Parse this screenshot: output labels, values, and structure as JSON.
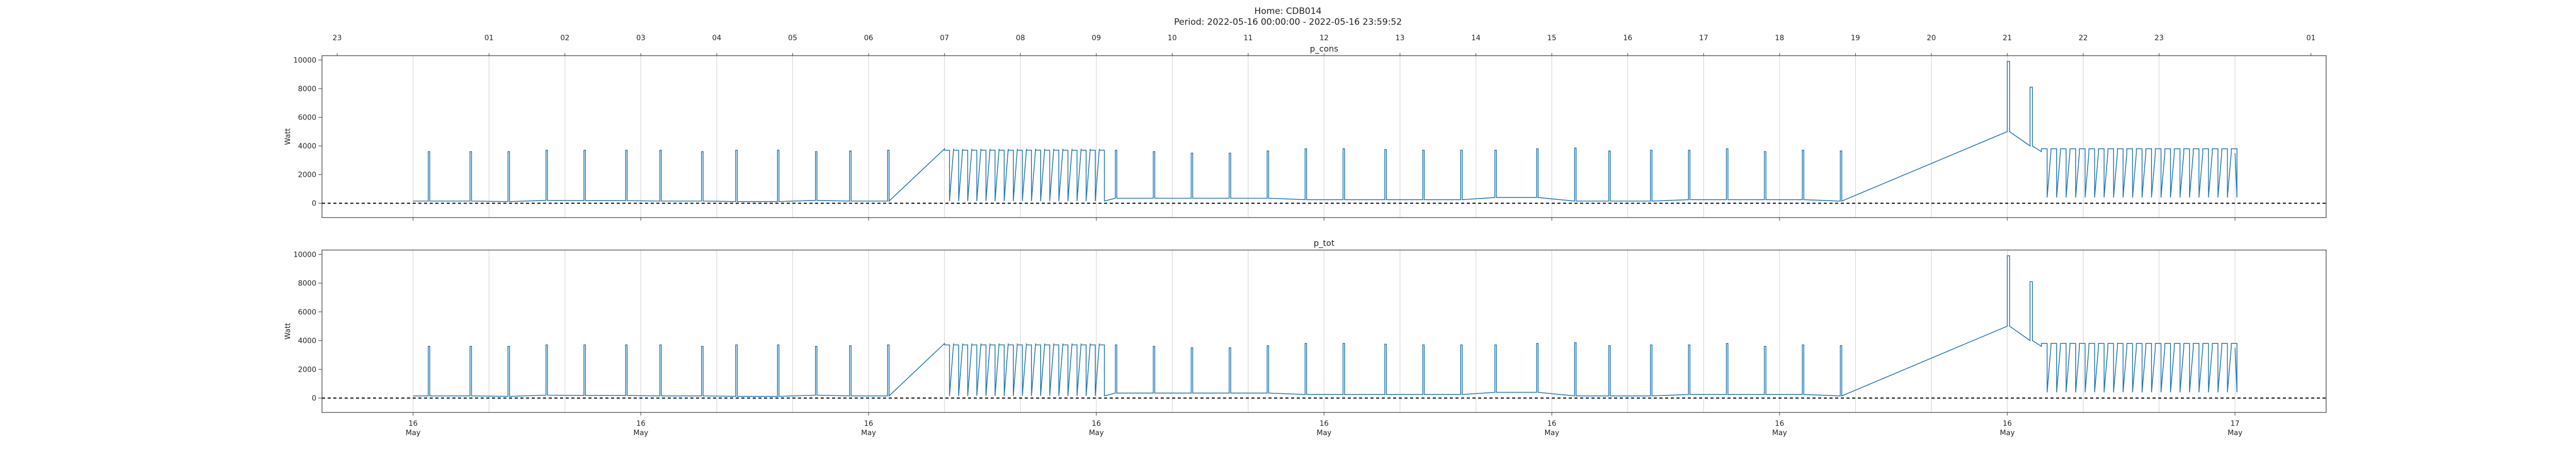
{
  "figure": {
    "home_title": "Home: CDB014",
    "period_title": "Period: 2022-05-16 00:00:00 - 2022-05-16 23:59:52"
  },
  "colors": {
    "series": "#1f77b4",
    "grid": "#cfcfcf",
    "zero_line": "#000000"
  },
  "chart_data": [
    {
      "type": "line",
      "title": "p_cons",
      "ylabel": "Watt",
      "xlabel": "",
      "ylim": [
        -1000,
        10300
      ],
      "yticks": [
        0,
        2000,
        4000,
        6000,
        8000,
        10000
      ],
      "grid": "vertical (hourly)",
      "hour_ticks": [
        "23",
        "01",
        "02",
        "03",
        "04",
        "05",
        "06",
        "07",
        "08",
        "09",
        "10",
        "11",
        "12",
        "13",
        "14",
        "15",
        "16",
        "17",
        "18",
        "19",
        "20",
        "21",
        "22",
        "23",
        "01"
      ],
      "hour_tick_hours": [
        -1,
        1,
        2,
        3,
        4,
        5,
        6,
        7,
        8,
        9,
        10,
        11,
        12,
        13,
        14,
        15,
        16,
        17,
        18,
        19,
        20,
        21,
        22,
        23,
        25
      ],
      "day_ticks": [
        {
          "hour": 0,
          "day": "16",
          "month": "May"
        },
        {
          "hour": 3,
          "day": "16",
          "month": "May"
        },
        {
          "hour": 6,
          "day": "16",
          "month": "May"
        },
        {
          "hour": 9,
          "day": "16",
          "month": "May"
        },
        {
          "hour": 12,
          "day": "16",
          "month": "May"
        },
        {
          "hour": 15,
          "day": "16",
          "month": "May"
        },
        {
          "hour": 18,
          "day": "16",
          "month": "May"
        },
        {
          "hour": 21,
          "day": "16",
          "month": "May"
        },
        {
          "hour": 24,
          "day": "17",
          "month": "May"
        }
      ],
      "xlim_hours": [
        -1.2,
        25.2
      ],
      "spike_times_hours": [
        0.2,
        0.75,
        1.25,
        1.75,
        2.25,
        2.8,
        3.25,
        3.8,
        4.25,
        4.8,
        5.3,
        5.75,
        6.25,
        9.25,
        9.75,
        10.25,
        10.75,
        11.25,
        11.75,
        12.25,
        12.8,
        13.3,
        13.8,
        14.25,
        14.8,
        15.3,
        15.75,
        16.3,
        16.8,
        17.3,
        17.8,
        18.3,
        18.8
      ],
      "spike_values_w": [
        3600,
        3600,
        3600,
        3700,
        3700,
        3700,
        3700,
        3600,
        3700,
        3700,
        3600,
        3650,
        3700,
        3700,
        3600,
        3500,
        3500,
        3650,
        3800,
        3800,
        3750,
        3700,
        3700,
        3700,
        3800,
        3850,
        3650,
        3700,
        3700,
        3800,
        3600,
        3700,
        3650
      ],
      "base_levels": [
        [
          0,
          150
        ],
        [
          0.8,
          120
        ],
        [
          1.3,
          200
        ],
        [
          2.2,
          180
        ],
        [
          3.0,
          150
        ],
        [
          3.9,
          120
        ],
        [
          4.9,
          200
        ],
        [
          5.6,
          150
        ],
        [
          6.9,
          3800
        ],
        [
          9.2,
          350
        ],
        [
          11.1,
          350
        ],
        [
          11.7,
          250
        ],
        [
          13.9,
          400
        ],
        [
          15.1,
          150
        ],
        [
          16.8,
          250
        ],
        [
          18.5,
          150
        ],
        [
          19.1,
          300
        ],
        [
          19.7,
          200
        ],
        [
          20.2,
          300
        ],
        [
          20.5,
          200
        ],
        [
          20.7,
          4900
        ],
        [
          20.75,
          6500
        ],
        [
          20.9,
          6200
        ],
        [
          20.95,
          5000
        ],
        [
          21.1,
          700
        ],
        [
          21.2,
          4000
        ],
        [
          21.4,
          3600
        ],
        [
          21.7,
          3600
        ],
        [
          21.9,
          3500
        ]
      ],
      "block_on_off": {
        "start_hour": 7.0,
        "end_hour": 9.1,
        "period_hours": 0.12,
        "high_w": 3700,
        "low_w": 150
      },
      "evening_cycles": {
        "start_hour": 21.45,
        "end_hour": 24.0,
        "period_hours": 0.125,
        "high_w": 3800,
        "low_w": 400
      },
      "peak": {
        "hour": 21.0,
        "value_w": 9900
      },
      "secondary_peak": {
        "hour": 21.3,
        "value_w": 8100
      }
    },
    {
      "type": "line",
      "title": "p_tot",
      "ylabel": "Watt",
      "xlabel": "",
      "ylim": [
        -1000,
        10300
      ],
      "yticks": [
        0,
        2000,
        4000,
        6000,
        8000,
        10000
      ],
      "grid": "vertical (hourly)",
      "same_as": "p_cons"
    }
  ]
}
